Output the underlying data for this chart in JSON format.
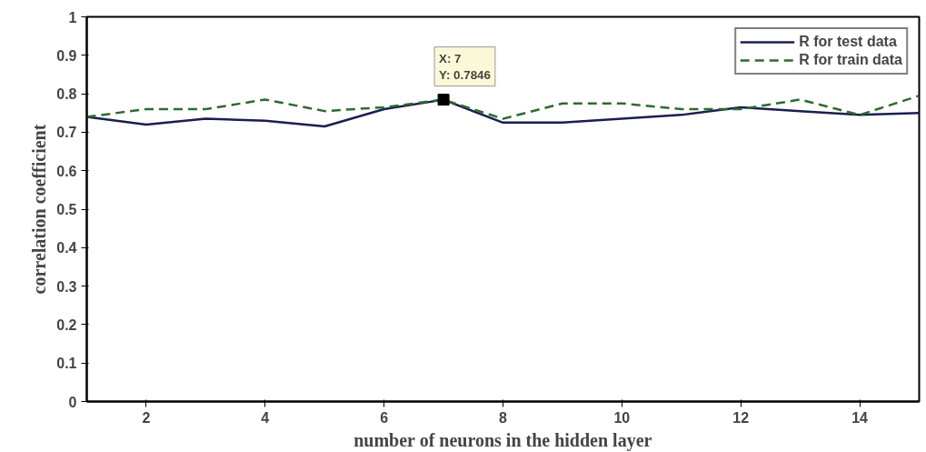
{
  "chart_data": {
    "type": "line",
    "xlabel": "number of neurons in the hidden layer",
    "ylabel": "correlation coefficient",
    "x": [
      1,
      2,
      3,
      4,
      5,
      6,
      7,
      8,
      9,
      10,
      11,
      12,
      13,
      14,
      15
    ],
    "series": [
      {
        "name": "R for test data",
        "color": "#1a1f4e",
        "line_style": "solid",
        "values": [
          0.74,
          0.72,
          0.735,
          0.73,
          0.715,
          0.76,
          0.7846,
          0.725,
          0.725,
          0.735,
          0.745,
          0.765,
          0.755,
          0.745,
          0.75
        ]
      },
      {
        "name": "R for train data",
        "color": "#2e6b2e",
        "line_style": "dashed",
        "values": [
          0.74,
          0.76,
          0.76,
          0.785,
          0.755,
          0.765,
          0.7846,
          0.735,
          0.775,
          0.775,
          0.76,
          0.76,
          0.785,
          0.745,
          0.795
        ]
      }
    ],
    "xlim": [
      1,
      15
    ],
    "xticks": [
      2,
      4,
      6,
      8,
      10,
      12,
      14
    ],
    "ylim": [
      0,
      1
    ],
    "yticks": [
      0,
      0.1,
      0.2,
      0.3,
      0.4,
      0.5,
      0.6,
      0.7,
      0.8,
      0.9,
      1
    ],
    "annotations": [
      {
        "text": "X: 7\nY: 0.7846",
        "x": 7,
        "y": 0.7846
      }
    ],
    "legend": "top right",
    "grid": false,
    "marker": "none"
  }
}
